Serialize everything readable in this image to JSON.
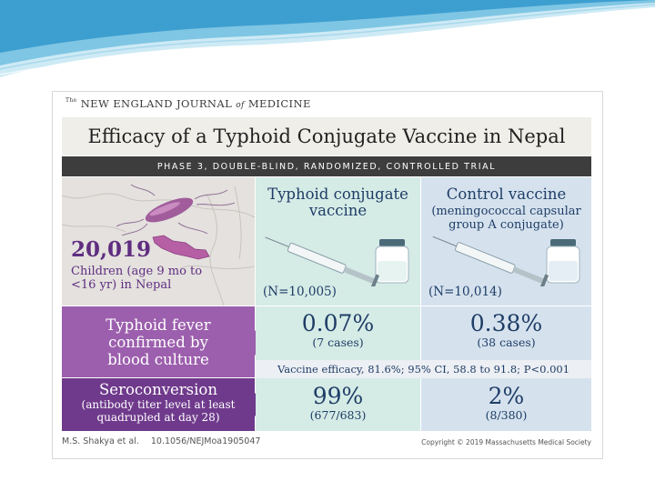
{
  "header": {
    "journal_prefix": "The",
    "journal_part1": "NEW ENGLAND JOURNAL",
    "journal_of": "of",
    "journal_part2": "MEDICINE"
  },
  "title": "Efficacy of a Typhoid Conjugate Vaccine in Nepal",
  "subtitle": "PHASE 3, DOUBLE-BLIND, RANDOMIZED, CONTROLLED TRIAL",
  "population": {
    "count": "20,019",
    "desc_line1": "Children (age 9 mo to",
    "desc_line2": "<16 yr) in Nepal"
  },
  "groups": {
    "tcv": {
      "name_line1": "Typhoid conjugate",
      "name_line2": "vaccine",
      "n": "(N=10,005)"
    },
    "control": {
      "name": "Control vaccine",
      "sub_line1": "(meningococcal capsular",
      "sub_line2": "group A conjugate)",
      "n": "(N=10,014)"
    }
  },
  "outcomes": {
    "typhoid": {
      "label_line1": "Typhoid fever",
      "label_line2": "confirmed by",
      "label_line3": "blood culture",
      "tcv_value": "0.07%",
      "tcv_cases": "(7 cases)",
      "control_value": "0.38%",
      "control_cases": "(38 cases)"
    },
    "efficacy": "Vaccine efficacy, 81.6%; 95% CI, 58.8 to 91.8; P<0.001",
    "seroconversion": {
      "label": "Seroconversion",
      "sub_line1": "(antibody titer level at least",
      "sub_line2": "quadrupled at day 28)",
      "tcv_value": "99%",
      "tcv_cases": "(677/683)",
      "control_value": "2%",
      "control_cases": "(8/380)"
    }
  },
  "footer": {
    "authors": "M.S. Shakya et al.",
    "doi": "10.1056/NEJMoa1905047",
    "copyright": "Copyright © 2019 Massachusetts Medical Society"
  },
  "colors": {
    "purple_light": "#9c5fad",
    "purple_dark": "#6f3a8c",
    "tcv_bg": "#d5ebe6",
    "control_bg": "#d5e2ee",
    "text_blue": "#1f3d66"
  }
}
